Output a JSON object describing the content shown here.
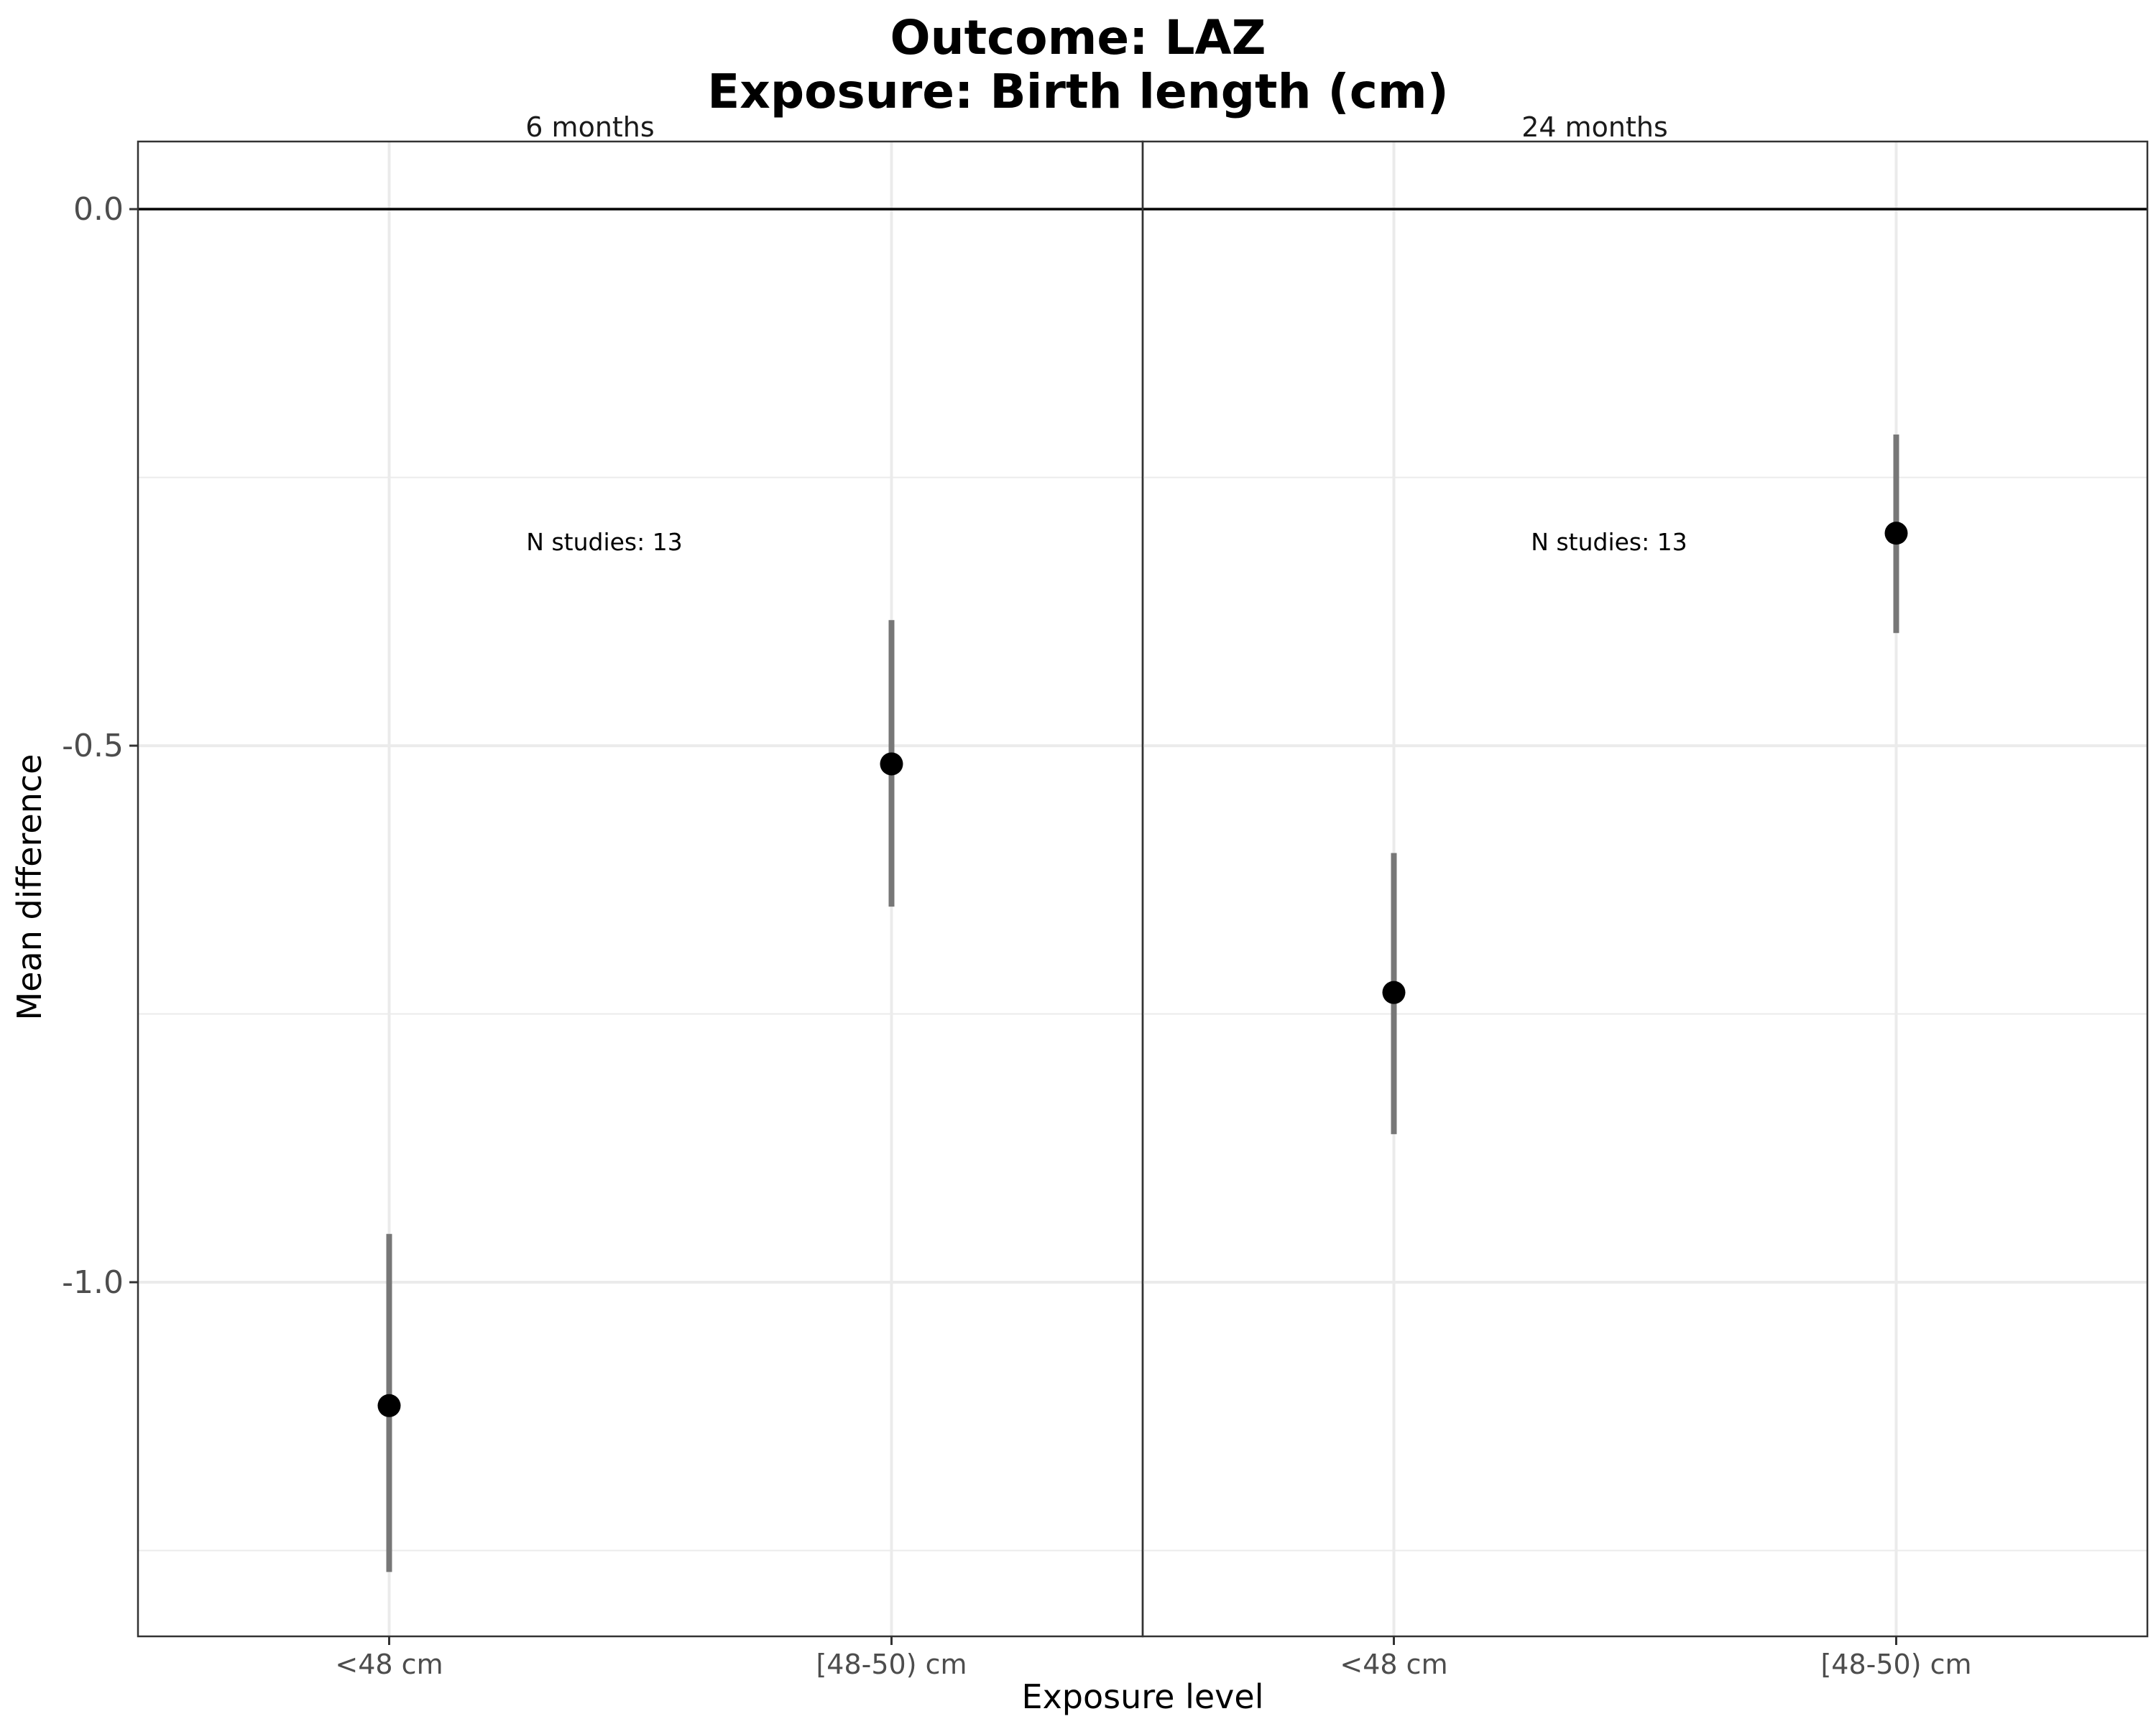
{
  "chart_data": {
    "type": "scatter",
    "title_lines": [
      "Outcome: LAZ",
      "Exposure: Birth length (cm)"
    ],
    "xlabel": "Exposure level",
    "ylabel": "Mean difference",
    "ylim": [
      -1.33,
      0.063
    ],
    "yticks": [
      0.0,
      -0.5,
      -1.0
    ],
    "ytick_labels": [
      "0.0",
      "-0.5",
      "-1.0"
    ],
    "reference_line": 0.0,
    "grid": true,
    "panels": [
      {
        "label": "6 months",
        "annotation": "N studies: 13",
        "annotation_y": -0.31,
        "categories": [
          "<48 cm",
          "[48-50) cm"
        ],
        "points": [
          {
            "category": "<48 cm",
            "estimate": -1.115,
            "ci_lower": -1.27,
            "ci_upper": -0.955
          },
          {
            "category": "[48-50) cm",
            "estimate": -0.517,
            "ci_lower": -0.65,
            "ci_upper": -0.383
          }
        ]
      },
      {
        "label": "24 months",
        "annotation": "N studies: 13",
        "annotation_y": -0.31,
        "categories": [
          "<48 cm",
          "[48-50) cm"
        ],
        "points": [
          {
            "category": "<48 cm",
            "estimate": -0.73,
            "ci_lower": -0.862,
            "ci_upper": -0.6
          },
          {
            "category": "[48-50) cm",
            "estimate": -0.302,
            "ci_lower": -0.395,
            "ci_upper": -0.21
          }
        ]
      }
    ]
  }
}
